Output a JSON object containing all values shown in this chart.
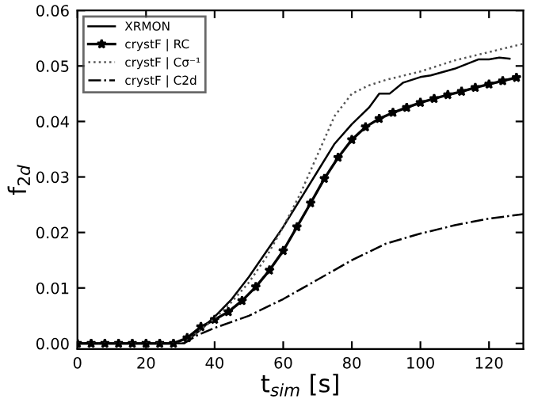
{
  "chart_data": {
    "type": "line",
    "xlabel": "t$_{sim}$ [s]",
    "ylabel": "f$_{2d}$",
    "xlim": [
      0,
      130
    ],
    "xticks": [
      0,
      20,
      40,
      60,
      80,
      100,
      120
    ],
    "ylim": [
      -0.001,
      0.06
    ],
    "yticks": [
      {
        "value": 0,
        "label": "0.00"
      },
      0.01,
      0.02,
      0.03,
      0.04,
      0.05,
      {
        "value": 0.06,
        "label": "0.06"
      }
    ],
    "grid": false,
    "legend": "top left",
    "series": [
      {
        "name": "XRMON",
        "color": "#000000",
        "line_style": "solid",
        "marker": "none",
        "x": [
          0,
          31,
          35,
          40,
          45,
          50,
          55,
          60,
          65,
          70,
          75,
          80,
          85,
          88,
          91,
          95,
          100,
          103,
          110,
          117,
          120,
          123,
          126
        ],
        "values": [
          0,
          0,
          0.002,
          0.0048,
          0.008,
          0.012,
          0.0165,
          0.021,
          0.026,
          0.031,
          0.036,
          0.0395,
          0.0425,
          0.045,
          0.045,
          0.047,
          0.048,
          0.0483,
          0.0495,
          0.0512,
          0.0512,
          0.0515,
          0.0513
        ]
      },
      {
        "name": "crystF | RC",
        "color": "#000000",
        "line_style": "solid",
        "marker": "star",
        "x": [
          0,
          4,
          8,
          12,
          16,
          20,
          24,
          28,
          32,
          36,
          40,
          44,
          48,
          52,
          56,
          60,
          64,
          68,
          72,
          76,
          80,
          84,
          88,
          92,
          96,
          100,
          104,
          108,
          112,
          116,
          120,
          124,
          128
        ],
        "values": [
          0,
          0,
          0,
          0,
          0,
          0,
          0,
          0,
          0.001,
          0.003,
          0.0043,
          0.0057,
          0.0077,
          0.0102,
          0.0132,
          0.0167,
          0.021,
          0.0253,
          0.0297,
          0.0335,
          0.0367,
          0.039,
          0.0405,
          0.0416,
          0.0425,
          0.0434,
          0.0441,
          0.0448,
          0.0454,
          0.0461,
          0.0467,
          0.0473,
          0.0479
        ]
      },
      {
        "name": "crystF | Cσ⁻¹",
        "color": "#555555",
        "line_style": "dotted",
        "marker": "none",
        "x": [
          0,
          31,
          35,
          40,
          45,
          50,
          55,
          60,
          65,
          70,
          75,
          80,
          85,
          90,
          100,
          110,
          120,
          130
        ],
        "values": [
          0,
          0,
          0.002,
          0.0045,
          0.0075,
          0.011,
          0.0155,
          0.021,
          0.027,
          0.034,
          0.041,
          0.045,
          0.0465,
          0.0475,
          0.049,
          0.051,
          0.0525,
          0.054
        ]
      },
      {
        "name": "crystF | C2d",
        "color": "#000000",
        "line_style": "dashdot",
        "marker": "none",
        "x": [
          0,
          31,
          35,
          40,
          50,
          60,
          70,
          80,
          90,
          100,
          110,
          120,
          130
        ],
        "values": [
          0,
          0,
          0.0015,
          0.0028,
          0.005,
          0.008,
          0.0115,
          0.015,
          0.018,
          0.0198,
          0.0213,
          0.0225,
          0.0233
        ]
      }
    ]
  }
}
